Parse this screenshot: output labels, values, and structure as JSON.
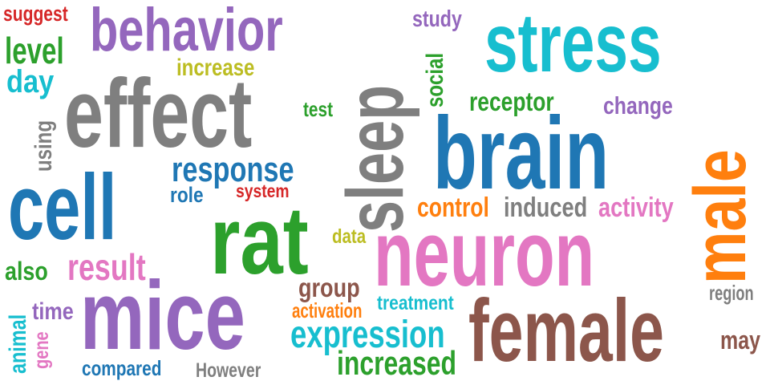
{
  "colors": {
    "purple": "#9467bd",
    "blue": "#1f77b4",
    "cyan": "#17becf",
    "gray": "#7f7f7f",
    "green": "#2ca02c",
    "orange": "#ff7f0e",
    "pink": "#e377c2",
    "brown": "#8c564b",
    "olive": "#bcbd22",
    "red": "#d62728"
  },
  "words": [
    {
      "text": "suggest",
      "color": "red"
    },
    {
      "text": "behavior",
      "color": "purple"
    },
    {
      "text": "study",
      "color": "purple"
    },
    {
      "text": "stress",
      "color": "cyan"
    },
    {
      "text": "level",
      "color": "green"
    },
    {
      "text": "day",
      "color": "cyan"
    },
    {
      "text": "increase",
      "color": "olive"
    },
    {
      "text": "effect",
      "color": "gray"
    },
    {
      "text": "sleep",
      "color": "gray"
    },
    {
      "text": "social",
      "color": "green"
    },
    {
      "text": "receptor",
      "color": "green"
    },
    {
      "text": "change",
      "color": "purple"
    },
    {
      "text": "test",
      "color": "green"
    },
    {
      "text": "using",
      "color": "gray"
    },
    {
      "text": "brain",
      "color": "blue"
    },
    {
      "text": "male",
      "color": "orange"
    },
    {
      "text": "response",
      "color": "blue"
    },
    {
      "text": "cell",
      "color": "blue"
    },
    {
      "text": "role",
      "color": "blue"
    },
    {
      "text": "system",
      "color": "red"
    },
    {
      "text": "control",
      "color": "orange"
    },
    {
      "text": "induced",
      "color": "gray"
    },
    {
      "text": "activity",
      "color": "pink"
    },
    {
      "text": "rat",
      "color": "green"
    },
    {
      "text": "data",
      "color": "olive"
    },
    {
      "text": "neuron",
      "color": "pink"
    },
    {
      "text": "result",
      "color": "pink"
    },
    {
      "text": "also",
      "color": "green"
    },
    {
      "text": "group",
      "color": "brown"
    },
    {
      "text": "region",
      "color": "gray"
    },
    {
      "text": "mice",
      "color": "purple"
    },
    {
      "text": "activation",
      "color": "orange"
    },
    {
      "text": "treatment",
      "color": "cyan"
    },
    {
      "text": "time",
      "color": "purple"
    },
    {
      "text": "animal",
      "color": "cyan"
    },
    {
      "text": "gene",
      "color": "pink"
    },
    {
      "text": "expression",
      "color": "cyan"
    },
    {
      "text": "female",
      "color": "brown"
    },
    {
      "text": "may",
      "color": "brown"
    },
    {
      "text": "compared",
      "color": "blue"
    },
    {
      "text": "However",
      "color": "gray"
    },
    {
      "text": "increased",
      "color": "green"
    }
  ]
}
